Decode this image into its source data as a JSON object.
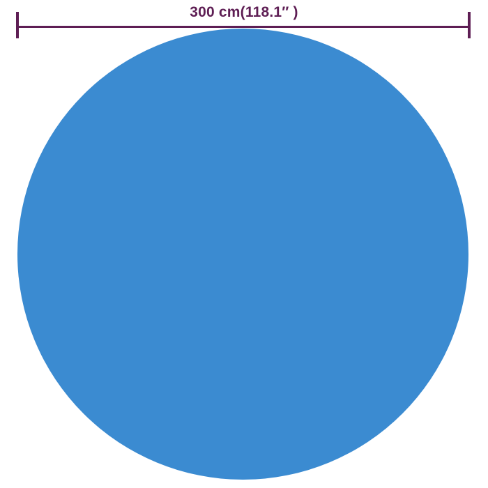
{
  "colors": {
    "background": "#FFFFFF",
    "dimension": "#5E1E54",
    "circle": "#3B8BD1"
  },
  "dimension": {
    "label": "300 cm(118.1″ )",
    "value_cm": 300,
    "value_inches": 118.1
  },
  "figure": {
    "shape": "circle",
    "description": "round blue pool cover product diagram"
  }
}
